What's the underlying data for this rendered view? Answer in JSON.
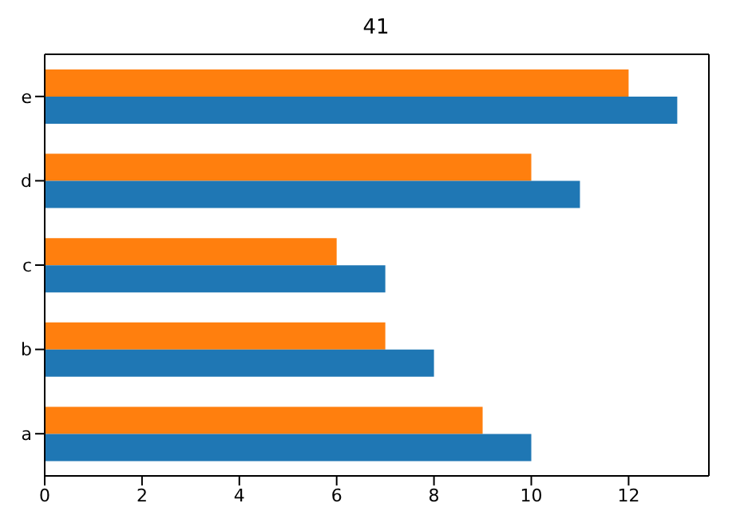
{
  "chart_data": {
    "type": "bar",
    "orientation": "horizontal",
    "title": "41",
    "categories": [
      "e",
      "d",
      "c",
      "b",
      "a"
    ],
    "series": [
      {
        "color": "#1f77b4",
        "values": [
          13,
          11,
          7,
          8,
          10
        ]
      },
      {
        "color": "#ff7f0e",
        "values": [
          12,
          10,
          6,
          7,
          9
        ]
      }
    ],
    "xlim": [
      0,
      13.65
    ],
    "xticks": [
      0,
      2,
      4,
      6,
      8,
      10,
      12
    ],
    "grid": false,
    "legend": false
  }
}
